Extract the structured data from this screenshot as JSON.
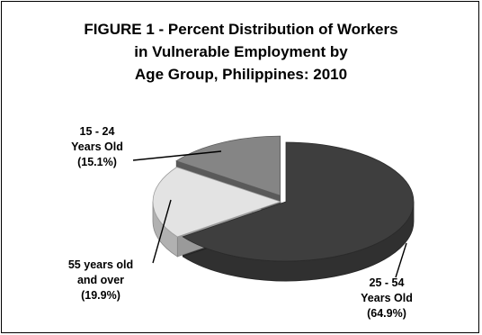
{
  "chart_data": {
    "type": "pie",
    "title_lines": [
      "FIGURE 1 - Percent Distribution of Workers",
      "in Vulnerable Employment by",
      "Age Group, Philippines:  2010"
    ],
    "slices": [
      {
        "label_lines": [
          "25 - 54",
          "Years Old",
          "(64.9%)"
        ],
        "value": 64.9,
        "color": "#3e3e3e",
        "exploded": false
      },
      {
        "label_lines": [
          "55 years old",
          "and over",
          "(19.9%)"
        ],
        "value": 19.9,
        "color": "#e3e3e3",
        "exploded": false
      },
      {
        "label_lines": [
          "15 - 24",
          "Years Old",
          "(15.1%)"
        ],
        "value": 15.1,
        "color": "#858585",
        "exploded": true
      }
    ],
    "style": "3d-exploded-pie",
    "legend": "none"
  }
}
